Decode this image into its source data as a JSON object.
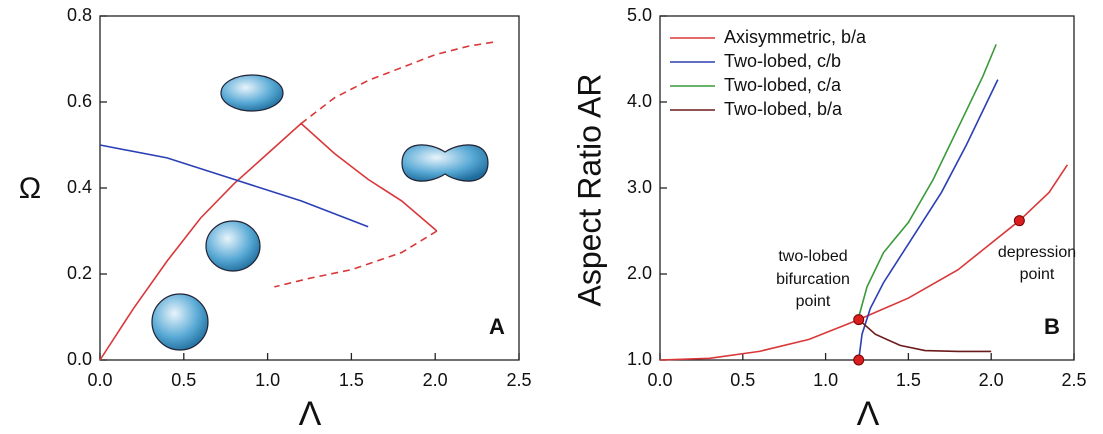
{
  "chart_data": [
    {
      "type": "line",
      "x_label": "Λ",
      "y_label": "Ω",
      "panel_label": "A",
      "xlim": [
        0,
        2.5
      ],
      "ylim": [
        0,
        0.8
      ],
      "xticks": [
        {
          "value": 0,
          "label": "0.0"
        },
        0.5,
        {
          "value": 1,
          "label": "1.0"
        },
        1.5,
        {
          "value": 2,
          "label": "2.0"
        },
        2.5
      ],
      "yticks": [
        {
          "value": 0,
          "label": "0.0"
        },
        0.2,
        0.4,
        0.6,
        0.8
      ],
      "series": [
        {
          "color": "#d9383a",
          "line_style": "solid",
          "x": [
            0,
            0.2,
            0.4,
            0.6,
            0.8,
            1.0,
            1.2,
            1.4,
            1.6,
            1.8,
            1.95,
            2.01
          ],
          "values": [
            0,
            0.12,
            0.23,
            0.33,
            0.41,
            0.48,
            0.55,
            0.48,
            0.42,
            0.37,
            0.32,
            0.3
          ]
        },
        {
          "color": "#d9383a",
          "line_style": "dashed",
          "x": [
            2.01,
            1.8,
            1.5,
            1.25,
            1.04
          ],
          "values": [
            0.3,
            0.25,
            0.21,
            0.19,
            0.17
          ]
        },
        {
          "color": "#d9383a",
          "line_style": "dashed",
          "x": [
            1.2,
            1.4,
            1.6,
            1.8,
            2.0,
            2.2,
            2.36
          ],
          "values": [
            0.55,
            0.61,
            0.65,
            0.68,
            0.71,
            0.73,
            0.74
          ]
        },
        {
          "color": "#2b3fb5",
          "line_style": "solid",
          "x": [
            0,
            0.4,
            0.8,
            1.2,
            1.6
          ],
          "values": [
            0.5,
            0.47,
            0.42,
            0.37,
            0.31
          ]
        }
      ]
    },
    {
      "type": "line",
      "x_label": "Λ",
      "y_label": "Aspect Ratio AR",
      "panel_label": "B",
      "xlim": [
        0,
        2.5
      ],
      "ylim": [
        1,
        5
      ],
      "xticks": [
        {
          "value": 0,
          "label": "0.0"
        },
        0.5,
        {
          "value": 1,
          "label": "1.0"
        },
        1.5,
        {
          "value": 2,
          "label": "2.0"
        },
        2.5
      ],
      "yticks": [
        {
          "value": 1,
          "label": "1.0"
        },
        {
          "value": 2,
          "label": "2.0"
        },
        {
          "value": 3,
          "label": "3.0"
        },
        {
          "value": 4,
          "label": "4.0"
        },
        {
          "value": 5,
          "label": "5.0"
        }
      ],
      "legend": "upper left",
      "series": [
        {
          "name": "Axisymmetric, b/a",
          "color": "#d9383a",
          "line_style": "solid",
          "x": [
            0,
            0.3,
            0.6,
            0.9,
            1.2,
            1.5,
            1.8,
            2.17,
            2.35,
            2.46
          ],
          "values": [
            1,
            1.02,
            1.1,
            1.24,
            1.47,
            1.72,
            2.05,
            2.62,
            2.95,
            3.27
          ]
        },
        {
          "name": "Two-lobed, c/b",
          "color": "#2b3fb5",
          "line_style": "solid",
          "x": [
            1.2,
            1.22,
            1.27,
            1.35,
            1.5,
            1.7,
            1.85,
            2.0,
            2.04
          ],
          "values": [
            1,
            1.3,
            1.6,
            1.9,
            2.35,
            2.95,
            3.5,
            4.1,
            4.26
          ]
        },
        {
          "name": "Two-lobed, c/a",
          "color": "#3a9a3a",
          "line_style": "solid",
          "x": [
            1.2,
            1.25,
            1.35,
            1.5,
            1.65,
            1.8,
            1.95,
            2.03
          ],
          "values": [
            1.5,
            1.85,
            2.25,
            2.6,
            3.1,
            3.7,
            4.3,
            4.67
          ]
        },
        {
          "name": "Two-lobed, b/a",
          "color": "#6b1b1b",
          "line_style": "solid",
          "x": [
            1.2,
            1.3,
            1.45,
            1.6,
            1.8,
            2.0
          ],
          "values": [
            1.47,
            1.3,
            1.17,
            1.11,
            1.1,
            1.1
          ]
        }
      ],
      "points": [
        {
          "x": 1.2,
          "y": 1.47,
          "color": "#d81e1e"
        },
        {
          "x": 1.2,
          "y": 1,
          "color": "#d81e1e"
        },
        {
          "x": 2.17,
          "y": 2.62,
          "color": "#d81e1e"
        }
      ],
      "annotations": [
        {
          "lines": [
            "two-lobed",
            "bifurcation",
            "point"
          ]
        },
        {
          "lines": [
            "depression",
            "point"
          ]
        }
      ]
    }
  ]
}
